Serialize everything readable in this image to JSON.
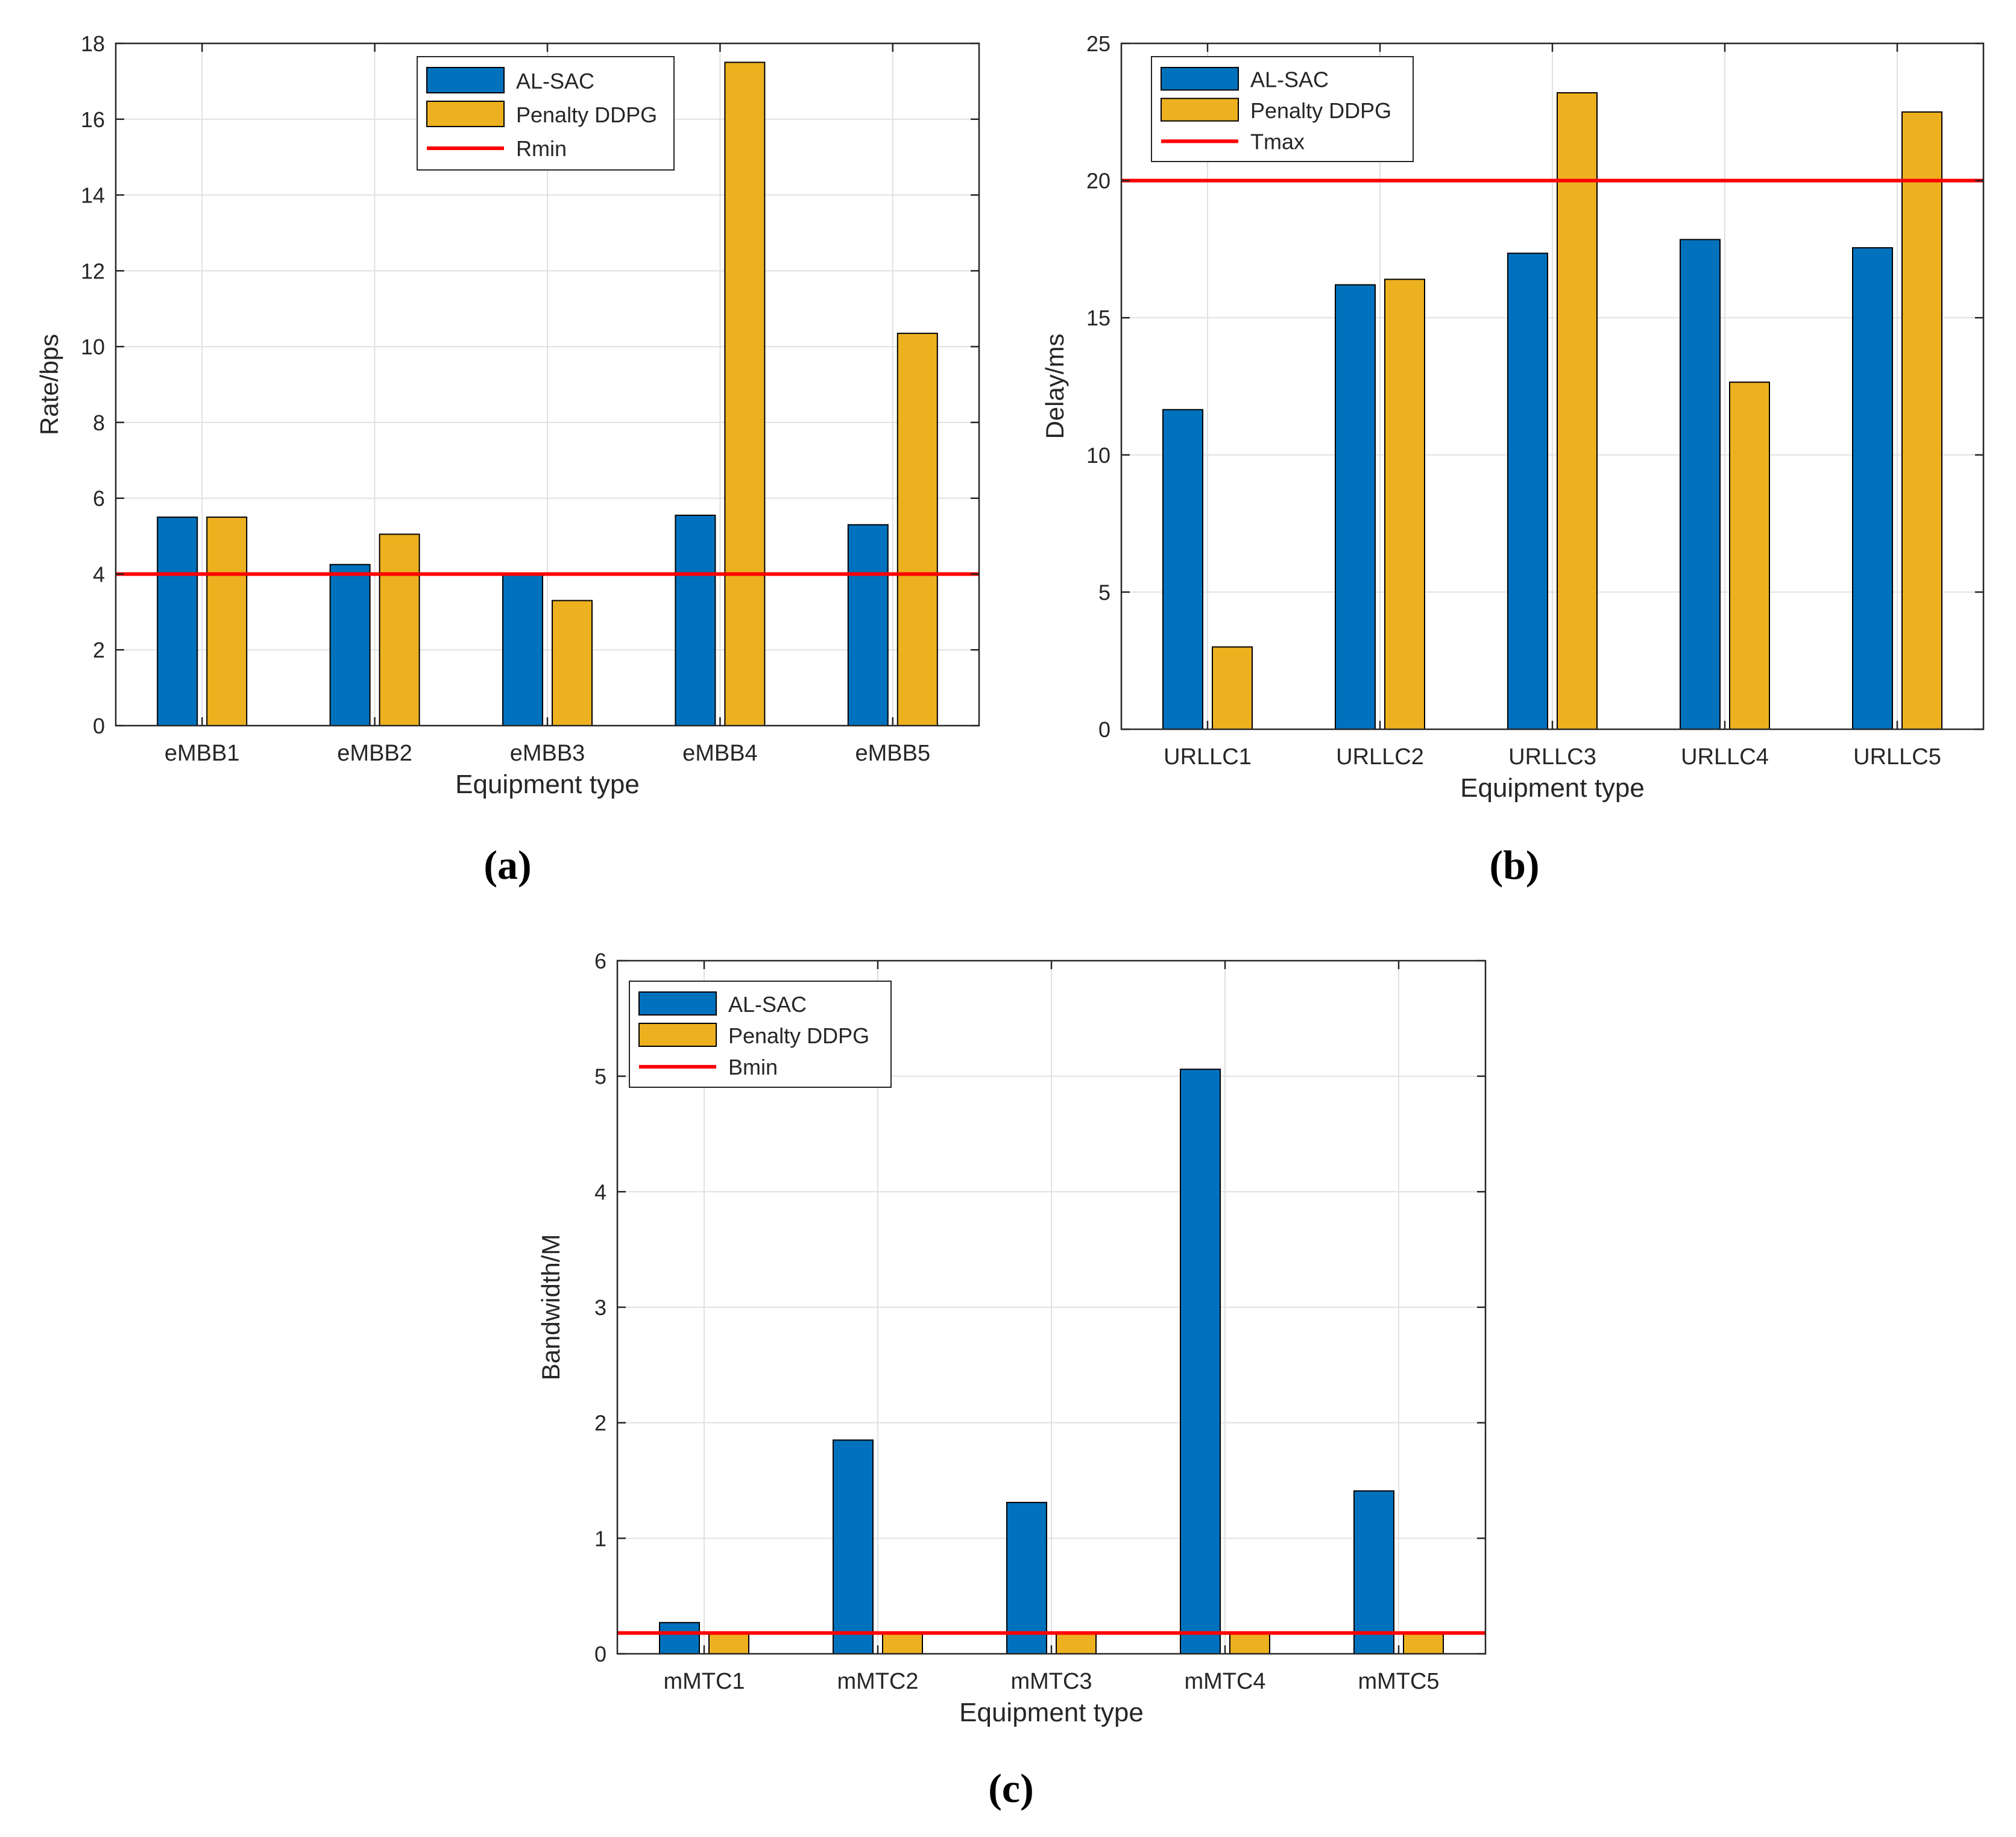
{
  "colors": {
    "series1": "#0072BD",
    "series2": "#EDB120",
    "threshold": "#FF0000",
    "grid": "#E1E1E1",
    "axis": "#262626"
  },
  "chart_data": [
    {
      "type": "bar",
      "panel_label": "(a)",
      "categories": [
        "eMBB1",
        "eMBB2",
        "eMBB3",
        "eMBB4",
        "eMBB5"
      ],
      "series": [
        {
          "name": "AL-SAC",
          "values": [
            5.5,
            4.25,
            4.0,
            5.55,
            5.3
          ]
        },
        {
          "name": "Penalty DDPG",
          "values": [
            5.5,
            5.05,
            3.3,
            17.5,
            10.35
          ]
        }
      ],
      "threshold": {
        "name": "Rmin",
        "value": 4
      },
      "xlabel": "Equipment type",
      "ylabel": "Rate/bps",
      "ylim": [
        0,
        18
      ],
      "yticks": [
        0,
        2,
        4,
        6,
        8,
        10,
        12,
        14,
        16,
        18
      ],
      "grid": true,
      "legend": "top-center"
    },
    {
      "type": "bar",
      "panel_label": "(b)",
      "categories": [
        "URLLC1",
        "URLLC2",
        "URLLC3",
        "URLLC4",
        "URLLC5"
      ],
      "series": [
        {
          "name": "AL-SAC",
          "values": [
            11.65,
            16.2,
            17.35,
            17.85,
            17.55
          ]
        },
        {
          "name": "Penalty DDPG",
          "values": [
            3.0,
            16.4,
            23.2,
            12.65,
            22.5
          ]
        }
      ],
      "threshold": {
        "name": "Tmax",
        "value": 20
      },
      "xlabel": "Equipment type",
      "ylabel": "Delay/ms",
      "ylim": [
        0,
        25
      ],
      "yticks": [
        0,
        5,
        10,
        15,
        20,
        25
      ],
      "grid": true,
      "legend": "top-left"
    },
    {
      "type": "bar",
      "panel_label": "(c)",
      "categories": [
        "mMTC1",
        "mMTC2",
        "mMTC3",
        "mMTC4",
        "mMTC5"
      ],
      "series": [
        {
          "name": "AL-SAC",
          "values": [
            0.27,
            1.85,
            1.31,
            5.06,
            1.41
          ]
        },
        {
          "name": "Penalty DDPG",
          "values": [
            0.18,
            0.18,
            0.18,
            0.18,
            0.18
          ]
        }
      ],
      "threshold": {
        "name": "Bmin",
        "value": 0.18
      },
      "xlabel": "Equipment type",
      "ylabel": "Bandwidth/M",
      "ylim": [
        0,
        6
      ],
      "yticks": [
        0,
        1,
        2,
        3,
        4,
        5,
        6
      ],
      "grid": true,
      "legend": "top-left"
    }
  ]
}
